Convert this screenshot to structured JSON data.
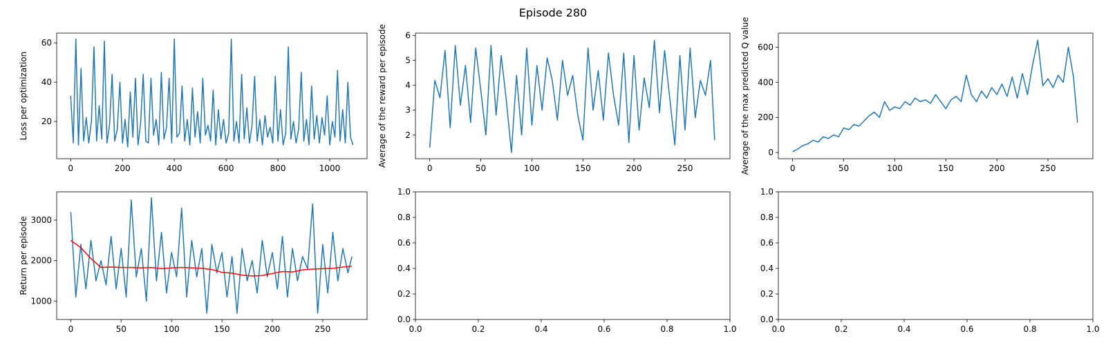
{
  "figure": {
    "suptitle": "Episode 280",
    "series_color": "#1f77b4",
    "avg_color": "#ff0000"
  },
  "chart_data": [
    {
      "id": "loss",
      "type": "line",
      "ylabel": "Loss per optimization",
      "xlim": [
        -54,
        1144
      ],
      "ylim": [
        1,
        65
      ],
      "xticks": [
        0,
        200,
        400,
        600,
        800,
        1000
      ],
      "yticks": [
        20,
        40,
        60
      ],
      "series": [
        {
          "color": "#1f77b4",
          "x": [
            0,
            10,
            20,
            30,
            40,
            50,
            60,
            70,
            80,
            90,
            100,
            110,
            120,
            130,
            140,
            150,
            160,
            170,
            180,
            190,
            200,
            210,
            220,
            230,
            240,
            250,
            260,
            270,
            280,
            290,
            300,
            310,
            320,
            330,
            340,
            350,
            360,
            370,
            380,
            390,
            400,
            410,
            420,
            430,
            440,
            450,
            460,
            470,
            480,
            490,
            500,
            510,
            520,
            530,
            540,
            550,
            560,
            570,
            580,
            590,
            600,
            610,
            620,
            630,
            640,
            650,
            660,
            670,
            680,
            690,
            700,
            710,
            720,
            730,
            740,
            750,
            760,
            770,
            780,
            790,
            800,
            810,
            820,
            830,
            840,
            850,
            860,
            870,
            880,
            890,
            900,
            910,
            920,
            930,
            940,
            950,
            960,
            970,
            980,
            990,
            1000,
            1010,
            1020,
            1030,
            1040,
            1050,
            1060,
            1070,
            1080,
            1090
          ],
          "y": [
            33,
            9,
            62,
            8,
            47,
            10,
            22,
            9,
            20,
            58,
            10,
            28,
            11,
            61,
            9,
            18,
            44,
            10,
            16,
            40,
            9,
            21,
            7,
            35,
            12,
            42,
            8,
            19,
            44,
            10,
            9,
            42,
            13,
            21,
            8,
            45,
            11,
            17,
            42,
            9,
            62,
            12,
            14,
            38,
            10,
            21,
            8,
            37,
            12,
            25,
            9,
            42,
            13,
            18,
            10,
            36,
            8,
            26,
            11,
            21,
            9,
            14,
            62,
            10,
            20,
            9,
            44,
            11,
            27,
            9,
            18,
            43,
            10,
            21,
            8,
            23,
            12,
            17,
            9,
            43,
            10,
            26,
            8,
            14,
            58,
            11,
            20,
            9,
            16,
            45,
            10,
            21,
            8,
            38,
            11,
            23,
            9,
            22,
            13,
            33,
            8,
            20,
            12,
            46,
            10,
            26,
            9,
            40,
            12,
            8
          ]
        }
      ]
    },
    {
      "id": "reward",
      "type": "line",
      "ylabel": "Average of the reward per episode",
      "xlim": [
        -14,
        294
      ],
      "ylim": [
        1.05,
        6.1
      ],
      "xticks": [
        0,
        50,
        100,
        150,
        200,
        250
      ],
      "yticks": [
        2,
        3,
        4,
        5,
        6
      ],
      "series": [
        {
          "color": "#1f77b4",
          "x": [
            0,
            5,
            10,
            15,
            20,
            25,
            30,
            35,
            40,
            45,
            50,
            55,
            60,
            65,
            70,
            75,
            80,
            85,
            90,
            95,
            100,
            105,
            110,
            115,
            120,
            125,
            130,
            135,
            140,
            145,
            150,
            155,
            160,
            165,
            170,
            175,
            180,
            185,
            190,
            195,
            200,
            205,
            210,
            215,
            220,
            225,
            230,
            235,
            240,
            245,
            250,
            255,
            260,
            265,
            270,
            275,
            279
          ],
          "y": [
            1.5,
            4.2,
            3.5,
            5.4,
            2.3,
            5.6,
            3.2,
            4.8,
            2.5,
            5.5,
            3.8,
            2.0,
            5.6,
            2.8,
            5.2,
            3.4,
            1.3,
            4.4,
            2.0,
            5.5,
            2.4,
            4.8,
            3.0,
            5.1,
            4.2,
            2.6,
            5.0,
            3.6,
            4.4,
            2.8,
            1.8,
            5.5,
            3.0,
            4.6,
            2.6,
            5.3,
            3.6,
            2.4,
            5.3,
            1.7,
            5.2,
            2.2,
            4.3,
            3.1,
            5.8,
            2.9,
            5.4,
            3.5,
            1.6,
            5.2,
            2.2,
            5.5,
            2.7,
            4.2,
            3.6,
            5.0,
            1.8
          ]
        }
      ]
    },
    {
      "id": "qvalue",
      "type": "line",
      "ylabel": "Average of the max predicted Q value",
      "xlim": [
        -14,
        294
      ],
      "ylim": [
        -35,
        680
      ],
      "xticks": [
        0,
        50,
        100,
        150,
        200,
        250
      ],
      "yticks": [
        0,
        200,
        400,
        600
      ],
      "series": [
        {
          "color": "#1f77b4",
          "x": [
            0,
            5,
            10,
            15,
            20,
            25,
            30,
            35,
            40,
            45,
            50,
            55,
            60,
            65,
            70,
            75,
            80,
            85,
            90,
            95,
            100,
            105,
            110,
            115,
            120,
            125,
            130,
            135,
            140,
            145,
            150,
            155,
            160,
            165,
            170,
            175,
            180,
            185,
            190,
            195,
            200,
            205,
            210,
            215,
            220,
            225,
            230,
            235,
            240,
            245,
            250,
            255,
            260,
            265,
            270,
            275,
            279
          ],
          "y": [
            5,
            20,
            40,
            50,
            70,
            60,
            90,
            80,
            100,
            90,
            140,
            130,
            160,
            150,
            180,
            210,
            230,
            200,
            290,
            240,
            260,
            250,
            290,
            270,
            310,
            290,
            300,
            280,
            330,
            290,
            250,
            300,
            320,
            290,
            440,
            330,
            290,
            350,
            310,
            370,
            330,
            390,
            320,
            430,
            310,
            450,
            330,
            500,
            640,
            380,
            420,
            370,
            440,
            400,
            600,
            430,
            170
          ]
        }
      ]
    },
    {
      "id": "return",
      "type": "line",
      "ylabel": "Return per episode",
      "xlim": [
        -14,
        294
      ],
      "ylim": [
        545,
        3700
      ],
      "xticks": [
        0,
        50,
        100,
        150,
        200,
        250
      ],
      "yticks": [
        1000,
        2000,
        3000
      ],
      "series": [
        {
          "color": "#1f77b4",
          "x": [
            0,
            5,
            10,
            15,
            20,
            25,
            30,
            35,
            40,
            45,
            50,
            55,
            60,
            65,
            70,
            75,
            80,
            85,
            90,
            95,
            100,
            105,
            110,
            115,
            120,
            125,
            130,
            135,
            140,
            145,
            150,
            155,
            160,
            165,
            170,
            175,
            180,
            185,
            190,
            195,
            200,
            205,
            210,
            215,
            220,
            225,
            230,
            235,
            240,
            245,
            250,
            255,
            260,
            265,
            270,
            275,
            279
          ],
          "y": [
            3200,
            1100,
            2400,
            1300,
            2500,
            1500,
            2000,
            1400,
            2600,
            1300,
            2300,
            1100,
            3500,
            1600,
            2300,
            1000,
            3550,
            1500,
            2700,
            1200,
            2200,
            1600,
            3300,
            1100,
            2500,
            1600,
            2300,
            700,
            2400,
            1700,
            2200,
            1100,
            2100,
            700,
            2300,
            1500,
            2000,
            1200,
            2500,
            1600,
            2200,
            1300,
            2600,
            1100,
            2300,
            1500,
            2100,
            1800,
            3400,
            700,
            2400,
            1200,
            2700,
            1500,
            2300,
            1700,
            2100
          ]
        },
        {
          "color": "#ff0000",
          "x": [
            0,
            10,
            20,
            30,
            40,
            50,
            60,
            70,
            80,
            90,
            100,
            110,
            120,
            130,
            140,
            150,
            160,
            170,
            180,
            190,
            200,
            210,
            220,
            230,
            240,
            250,
            260,
            270,
            279
          ],
          "y": [
            2500,
            2320,
            2050,
            1830,
            1840,
            1830,
            1830,
            1820,
            1830,
            1800,
            1820,
            1830,
            1820,
            1810,
            1780,
            1710,
            1690,
            1640,
            1620,
            1630,
            1680,
            1730,
            1720,
            1770,
            1790,
            1800,
            1810,
            1840,
            1860
          ]
        }
      ]
    },
    {
      "id": "empty1",
      "type": "line",
      "ylabel": "",
      "xlim": [
        0,
        1
      ],
      "ylim": [
        0,
        1
      ],
      "xticks": [
        0.0,
        0.2,
        0.4,
        0.6,
        0.8,
        1.0
      ],
      "yticks": [
        0.0,
        0.2,
        0.4,
        0.6,
        0.8,
        1.0
      ],
      "series": []
    },
    {
      "id": "empty2",
      "type": "line",
      "ylabel": "",
      "xlim": [
        0,
        1
      ],
      "ylim": [
        0,
        1
      ],
      "xticks": [
        0.0,
        0.2,
        0.4,
        0.6,
        0.8,
        1.0
      ],
      "yticks": [
        0.0,
        0.2,
        0.4,
        0.6,
        0.8,
        1.0
      ],
      "series": []
    }
  ]
}
